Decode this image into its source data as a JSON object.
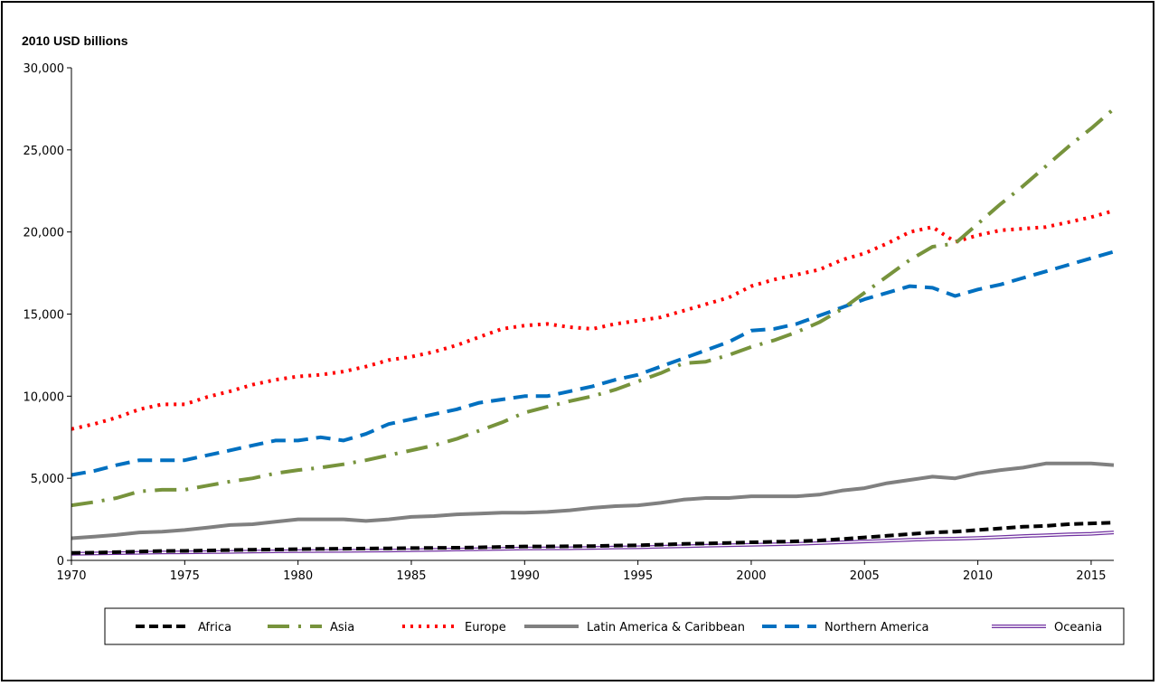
{
  "chart_data": {
    "type": "line",
    "title": "",
    "ylabel": "2010 USD billions",
    "xlabel": "",
    "xlim": [
      1970,
      2016
    ],
    "ylim": [
      0,
      30000
    ],
    "yticks": [
      0,
      5000,
      10000,
      15000,
      20000,
      25000,
      30000
    ],
    "ytick_labels": [
      "0",
      "5,000",
      "10,000",
      "15,000",
      "20,000",
      "25,000",
      "30,000"
    ],
    "xticks": [
      1970,
      1975,
      1980,
      1985,
      1990,
      1995,
      2000,
      2005,
      2010,
      2015
    ],
    "xtick_labels": [
      "1970",
      "1975",
      "1980",
      "1985",
      "1990",
      "1995",
      "2000",
      "2005",
      "2010",
      "2015"
    ],
    "grid": false,
    "legend_position": "bottom",
    "x": [
      1970,
      1971,
      1972,
      1973,
      1974,
      1975,
      1976,
      1977,
      1978,
      1979,
      1980,
      1981,
      1982,
      1983,
      1984,
      1985,
      1986,
      1987,
      1988,
      1989,
      1990,
      1991,
      1992,
      1993,
      1994,
      1995,
      1996,
      1997,
      1998,
      1999,
      2000,
      2001,
      2002,
      2003,
      2004,
      2005,
      2006,
      2007,
      2008,
      2009,
      2010,
      2011,
      2012,
      2013,
      2014,
      2015,
      2016
    ],
    "series": [
      {
        "name": "Africa",
        "color": "#000000",
        "dash": "10,5",
        "width": 4,
        "values": [
          450,
          470,
          500,
          540,
          570,
          580,
          600,
          630,
          650,
          660,
          680,
          700,
          710,
          720,
          730,
          750,
          760,
          770,
          790,
          820,
          850,
          850,
          860,
          870,
          900,
          920,
          960,
          1000,
          1030,
          1060,
          1100,
          1130,
          1160,
          1210,
          1300,
          1400,
          1500,
          1600,
          1700,
          1750,
          1850,
          1950,
          2050,
          2100,
          2200,
          2250,
          2300
        ]
      },
      {
        "name": "Asia",
        "color": "#77933C",
        "dash": "24,10,3,10",
        "width": 4,
        "values": [
          3350,
          3550,
          3800,
          4200,
          4300,
          4300,
          4550,
          4800,
          5000,
          5300,
          5500,
          5650,
          5850,
          6100,
          6400,
          6700,
          7000,
          7400,
          7900,
          8400,
          9000,
          9350,
          9700,
          10000,
          10400,
          10900,
          11400,
          12000,
          12100,
          12500,
          13000,
          13400,
          13900,
          14500,
          15300,
          16300,
          17300,
          18300,
          19100,
          19300,
          20500,
          21700,
          22800,
          24000,
          25200,
          26300,
          27500
        ]
      },
      {
        "name": "Europe",
        "color": "#FF0000",
        "dash": "3,6",
        "width": 4,
        "values": [
          8000,
          8300,
          8700,
          9200,
          9500,
          9500,
          9950,
          10300,
          10700,
          11000,
          11200,
          11300,
          11500,
          11800,
          12200,
          12400,
          12700,
          13100,
          13600,
          14100,
          14300,
          14400,
          14200,
          14100,
          14400,
          14600,
          14800,
          15200,
          15600,
          16000,
          16700,
          17100,
          17400,
          17700,
          18300,
          18700,
          19300,
          20000,
          20300,
          19400,
          19800,
          20100,
          20200,
          20300,
          20600,
          20900,
          21300
        ]
      },
      {
        "name": "Latin America & Caribbean",
        "color": "#808080",
        "dash": "",
        "width": 4,
        "values": [
          1350,
          1450,
          1550,
          1700,
          1750,
          1850,
          2000,
          2150,
          2200,
          2350,
          2500,
          2500,
          2500,
          2400,
          2500,
          2650,
          2700,
          2800,
          2850,
          2900,
          2900,
          2950,
          3050,
          3200,
          3300,
          3350,
          3500,
          3700,
          3800,
          3800,
          3900,
          3900,
          3900,
          4000,
          4250,
          4400,
          4700,
          4900,
          5100,
          5000,
          5300,
          5500,
          5650,
          5900,
          5900,
          5900,
          5800
        ]
      },
      {
        "name": "Northern America",
        "color": "#0070C0",
        "dash": "16,9",
        "width": 4,
        "values": [
          5200,
          5450,
          5800,
          6100,
          6100,
          6100,
          6400,
          6700,
          7000,
          7300,
          7300,
          7500,
          7300,
          7700,
          8300,
          8600,
          8900,
          9200,
          9600,
          9800,
          10000,
          10000,
          10300,
          10600,
          11000,
          11300,
          11800,
          12300,
          12800,
          13300,
          14000,
          14100,
          14400,
          14900,
          15400,
          15900,
          16300,
          16700,
          16600,
          16100,
          16500,
          16800,
          17200,
          17600,
          18000,
          18400,
          18800
        ]
      },
      {
        "name": "Oceania",
        "color": "#7030A0",
        "dash": "",
        "width": 4,
        "double": true,
        "values": [
          400,
          420,
          440,
          460,
          480,
          490,
          500,
          520,
          540,
          550,
          560,
          570,
          580,
          590,
          600,
          620,
          640,
          660,
          680,
          700,
          720,
          730,
          740,
          760,
          780,
          800,
          830,
          860,
          890,
          920,
          950,
          980,
          1010,
          1050,
          1100,
          1150,
          1200,
          1250,
          1300,
          1320,
          1360,
          1420,
          1480,
          1530,
          1580,
          1620,
          1700
        ]
      }
    ]
  }
}
